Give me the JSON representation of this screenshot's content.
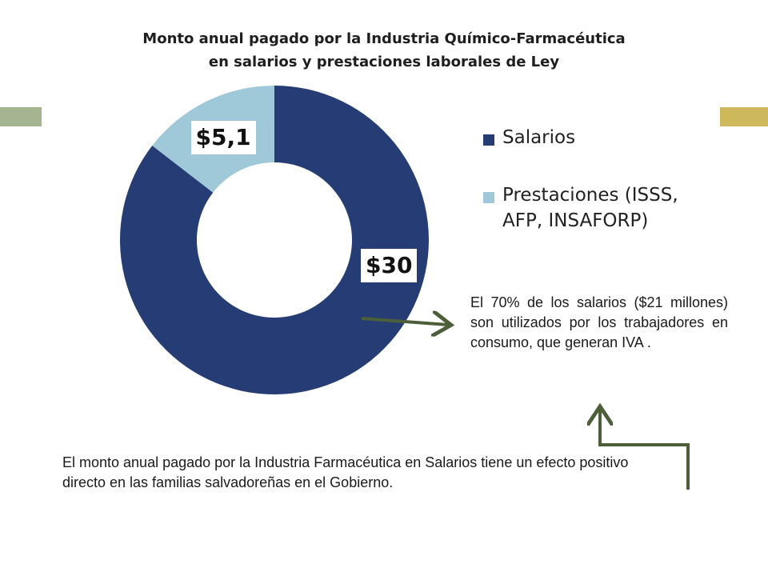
{
  "colors": {
    "salarios": "#253d74",
    "prestaciones": "#9fc9d9",
    "arrow": "#4d5e3a",
    "deco_left": "#a5b592",
    "deco_right": "#cdb95c"
  },
  "chart_data": {
    "type": "pie",
    "variant": "donut",
    "title": "Monto anual pagado por la Industria Químico-Farmacéutica en salarios y prestaciones laborales de Ley",
    "title_lines": [
      "Monto anual pagado por la Industria Químico-Farmacéutica",
      "en salarios y prestaciones laborales de Ley"
    ],
    "categories": [
      "Salarios",
      "Prestaciones (ISSS, AFP, INSAFORP)"
    ],
    "values": [
      30,
      5.1
    ],
    "data_labels": [
      "$30",
      "$5,1"
    ],
    "legend": [
      "Salarios",
      "Prestaciones (ISSS, AFP, INSAFORP)"
    ],
    "legend_position": "right"
  },
  "note": "El 70% de los salarios ($21 millones)  son utilizados por los trabajadores en consumo, que generan IVA .",
  "footer": "El monto anual pagado por la Industria Farmacéutica en Salarios tiene un efecto positivo directo en las familias salvadoreñas en el Gobierno."
}
